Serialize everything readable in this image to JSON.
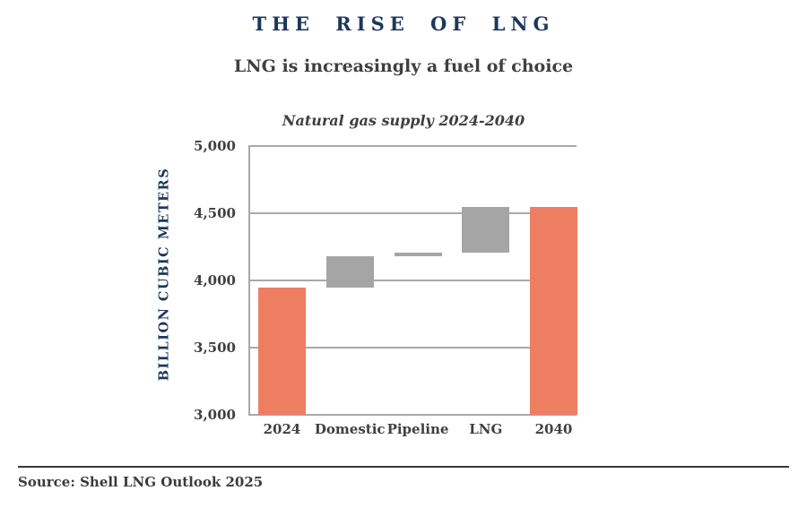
{
  "header": {
    "title": "THE RISE OF LNG",
    "subtitle": "LNG is increasingly a fuel of choice"
  },
  "footer": {
    "source": "Source: Shell LNG Outlook 2025"
  },
  "colors": {
    "accent_orange": "#EE7E62",
    "neutral_gray": "#A5A5A5",
    "navy": "#1C375A",
    "text_dark": "#3F3F3F",
    "grid_gray": "#A9A9A9",
    "rule_dark": "#3A3A3A"
  },
  "chart_data": {
    "type": "bar",
    "variant": "waterfall",
    "title": "Natural gas supply 2024-2040",
    "xlabel": "",
    "ylabel": "BILLION CUBIC METERS",
    "unit": "billion cubic meters",
    "ylim": [
      3000,
      5000
    ],
    "grid": true,
    "yticks": [
      {
        "value": 5000,
        "label": "5,000"
      },
      {
        "value": 4500,
        "label": "4,500"
      },
      {
        "value": 4000,
        "label": "4,000"
      },
      {
        "value": 3500,
        "label": "3,500"
      },
      {
        "value": 3000,
        "label": "3,000"
      }
    ],
    "categories": [
      "2024",
      "Domestic",
      "Pipeline",
      "LNG",
      "2040"
    ],
    "bars": [
      {
        "label": "2024",
        "role": "total",
        "start": 3000,
        "end": 3950,
        "total": 3950,
        "color": "#EE7E62"
      },
      {
        "label": "Domestic",
        "role": "increase",
        "start": 3950,
        "end": 4180,
        "change": 230,
        "color": "#A5A5A5"
      },
      {
        "label": "Pipeline",
        "role": "increase",
        "start": 4180,
        "end": 4210,
        "change": 30,
        "color": "#A5A5A5"
      },
      {
        "label": "LNG",
        "role": "increase",
        "start": 4210,
        "end": 4550,
        "change": 340,
        "color": "#A5A5A5"
      },
      {
        "label": "2040",
        "role": "total",
        "start": 3000,
        "end": 4550,
        "total": 4550,
        "color": "#EE7E62"
      }
    ]
  }
}
